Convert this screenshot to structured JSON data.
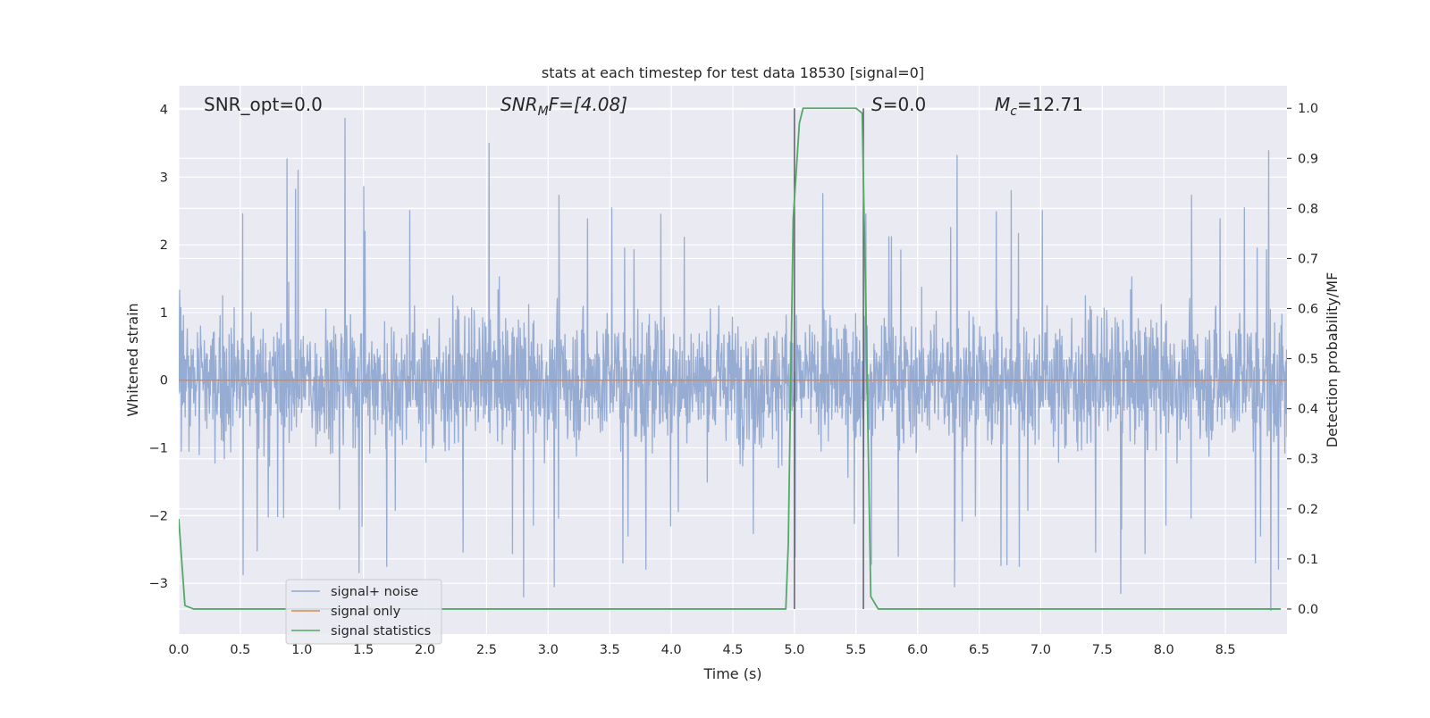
{
  "chart_data": {
    "type": "line",
    "title": "stats at each timestep for test data 18530 [signal=0]",
    "xlabel": "Time (s)",
    "ylabel_left": "Whitened strain",
    "ylabel_right": "Detection probability/MF",
    "xlim": [
      0.0,
      9.0
    ],
    "ylim_left": [
      -3.75,
      4.35
    ],
    "ylim_right": [
      -0.05,
      1.045
    ],
    "x_ticks": [
      "0.0",
      "0.5",
      "1.0",
      "1.5",
      "2.0",
      "2.5",
      "3.0",
      "3.5",
      "4.0",
      "4.5",
      "5.0",
      "5.5",
      "6.0",
      "6.5",
      "7.0",
      "7.5",
      "8.0",
      "8.5"
    ],
    "y_left_ticks": [
      "4",
      "3",
      "2",
      "1",
      "0",
      "−1",
      "−2",
      "−3"
    ],
    "y_right_ticks": [
      "1.0",
      "0.9",
      "0.8",
      "0.7",
      "0.6",
      "0.5",
      "0.4",
      "0.3",
      "0.2",
      "0.1",
      "0.0"
    ],
    "grid": true,
    "legend_position": "lower-left",
    "annotations": {
      "snr_opt": "SNR_opt=0.0",
      "snr_mf_main": "SNR",
      "snr_mf_sub": "M",
      "snr_mf_tail": "F=[4.08]",
      "s_main": "S",
      "s_tail": "=0.0",
      "mc_main": "M",
      "mc_sub": "c",
      "mc_tail": "=12.71"
    },
    "vertical_lines_x": [
      5.0,
      5.56
    ],
    "series": [
      {
        "name": "signal+ noise",
        "color": "#8fa6cf",
        "axis": "left",
        "kind": "noise",
        "envelope": {
          "typical_abs": 1.3,
          "peak_max": 3.87,
          "peak_min": -3.4
        },
        "notable_peaks": [
          [
            0.88,
            3.27
          ],
          [
            0.97,
            3.1
          ],
          [
            1.35,
            3.87
          ],
          [
            2.52,
            3.5
          ],
          [
            6.32,
            3.32
          ],
          [
            8.85,
            3.39
          ],
          [
            2.8,
            -3.2
          ],
          [
            3.05,
            -3.05
          ],
          [
            8.87,
            -3.4
          ],
          [
            7.65,
            -3.15
          ],
          [
            6.3,
            -3.05
          ]
        ]
      },
      {
        "name": "signal only",
        "color": "#dd8452",
        "axis": "left",
        "kind": "flat",
        "value": 0
      },
      {
        "name": "signal statistics",
        "color": "#55a868",
        "axis": "right",
        "kind": "line",
        "x": [
          0.0,
          0.05,
          0.12,
          0.2,
          4.93,
          4.95,
          4.99,
          5.04,
          5.07,
          5.5,
          5.55,
          5.58,
          5.62,
          5.68,
          8.95
        ],
        "y": [
          0.18,
          0.007,
          0.0,
          0.0,
          0.0,
          0.13,
          0.78,
          0.97,
          1.0,
          1.0,
          0.99,
          0.6,
          0.025,
          0.0,
          0.0
        ]
      }
    ]
  }
}
